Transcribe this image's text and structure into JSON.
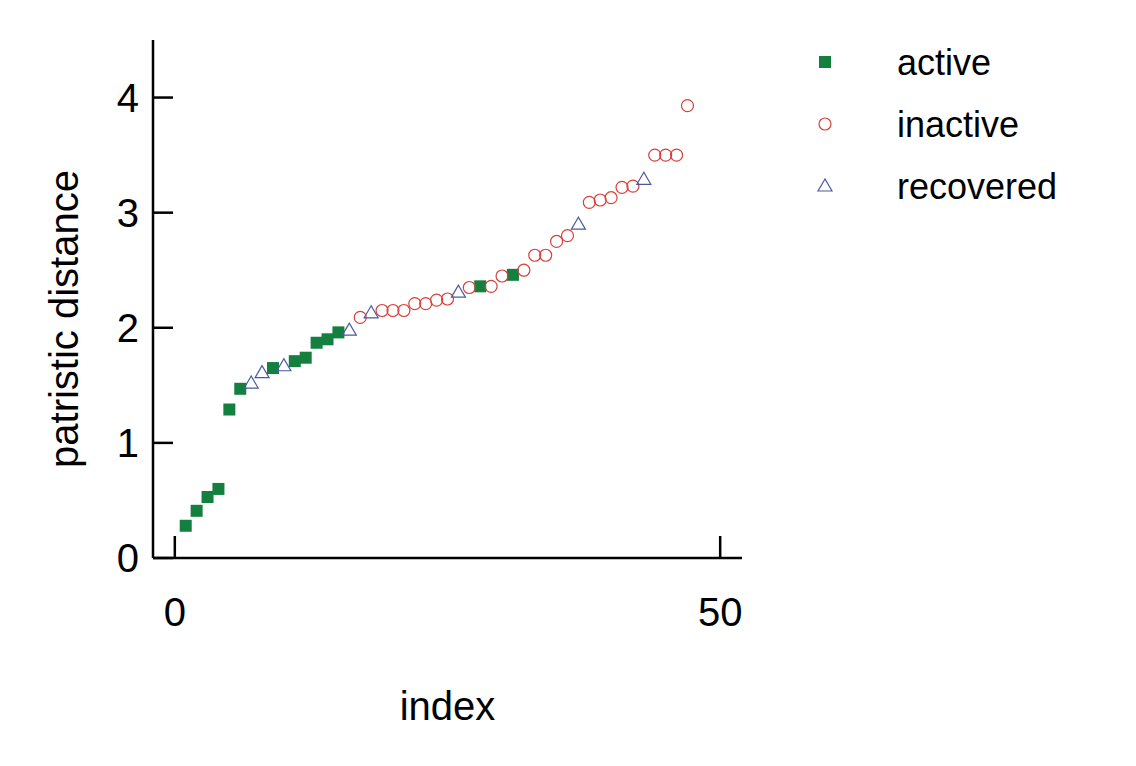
{
  "chart_data": {
    "type": "scatter",
    "x_label": "index",
    "y_label": "patristic distance",
    "xlim": [
      -2,
      52
    ],
    "xticks": [
      0,
      50
    ],
    "ylim": [
      0,
      4.5
    ],
    "yticks": [
      0,
      1,
      2,
      3,
      4
    ],
    "legend": "upper right",
    "series": [
      {
        "name": "active",
        "color": "#138040",
        "marker": "square",
        "x": [
          1,
          2,
          3,
          4,
          5,
          6,
          9,
          11,
          12,
          13,
          14,
          15,
          28,
          31
        ],
        "values": [
          0.28,
          0.41,
          0.53,
          0.6,
          1.29,
          1.47,
          1.65,
          1.71,
          1.74,
          1.87,
          1.9,
          1.96,
          2.36,
          2.46
        ]
      },
      {
        "name": "inactive",
        "color": "#d9403a",
        "marker": "circle",
        "x": [
          17,
          19,
          20,
          21,
          22,
          23,
          24,
          25,
          27,
          29,
          30,
          32,
          33,
          34,
          35,
          36,
          38,
          39,
          40,
          41,
          42,
          44,
          45,
          46,
          47
        ],
        "values": [
          2.09,
          2.15,
          2.15,
          2.15,
          2.21,
          2.21,
          2.24,
          2.25,
          2.35,
          2.36,
          2.45,
          2.5,
          2.63,
          2.63,
          2.75,
          2.8,
          3.09,
          3.11,
          3.13,
          3.22,
          3.23,
          3.5,
          3.5,
          3.5,
          3.93
        ]
      },
      {
        "name": "recovered",
        "color": "#4a5aa0",
        "marker": "triangle",
        "x": [
          7,
          8,
          10,
          16,
          18,
          26,
          37,
          43
        ],
        "values": [
          1.52,
          1.61,
          1.67,
          1.98,
          2.13,
          2.31,
          2.9,
          3.29
        ]
      }
    ]
  }
}
